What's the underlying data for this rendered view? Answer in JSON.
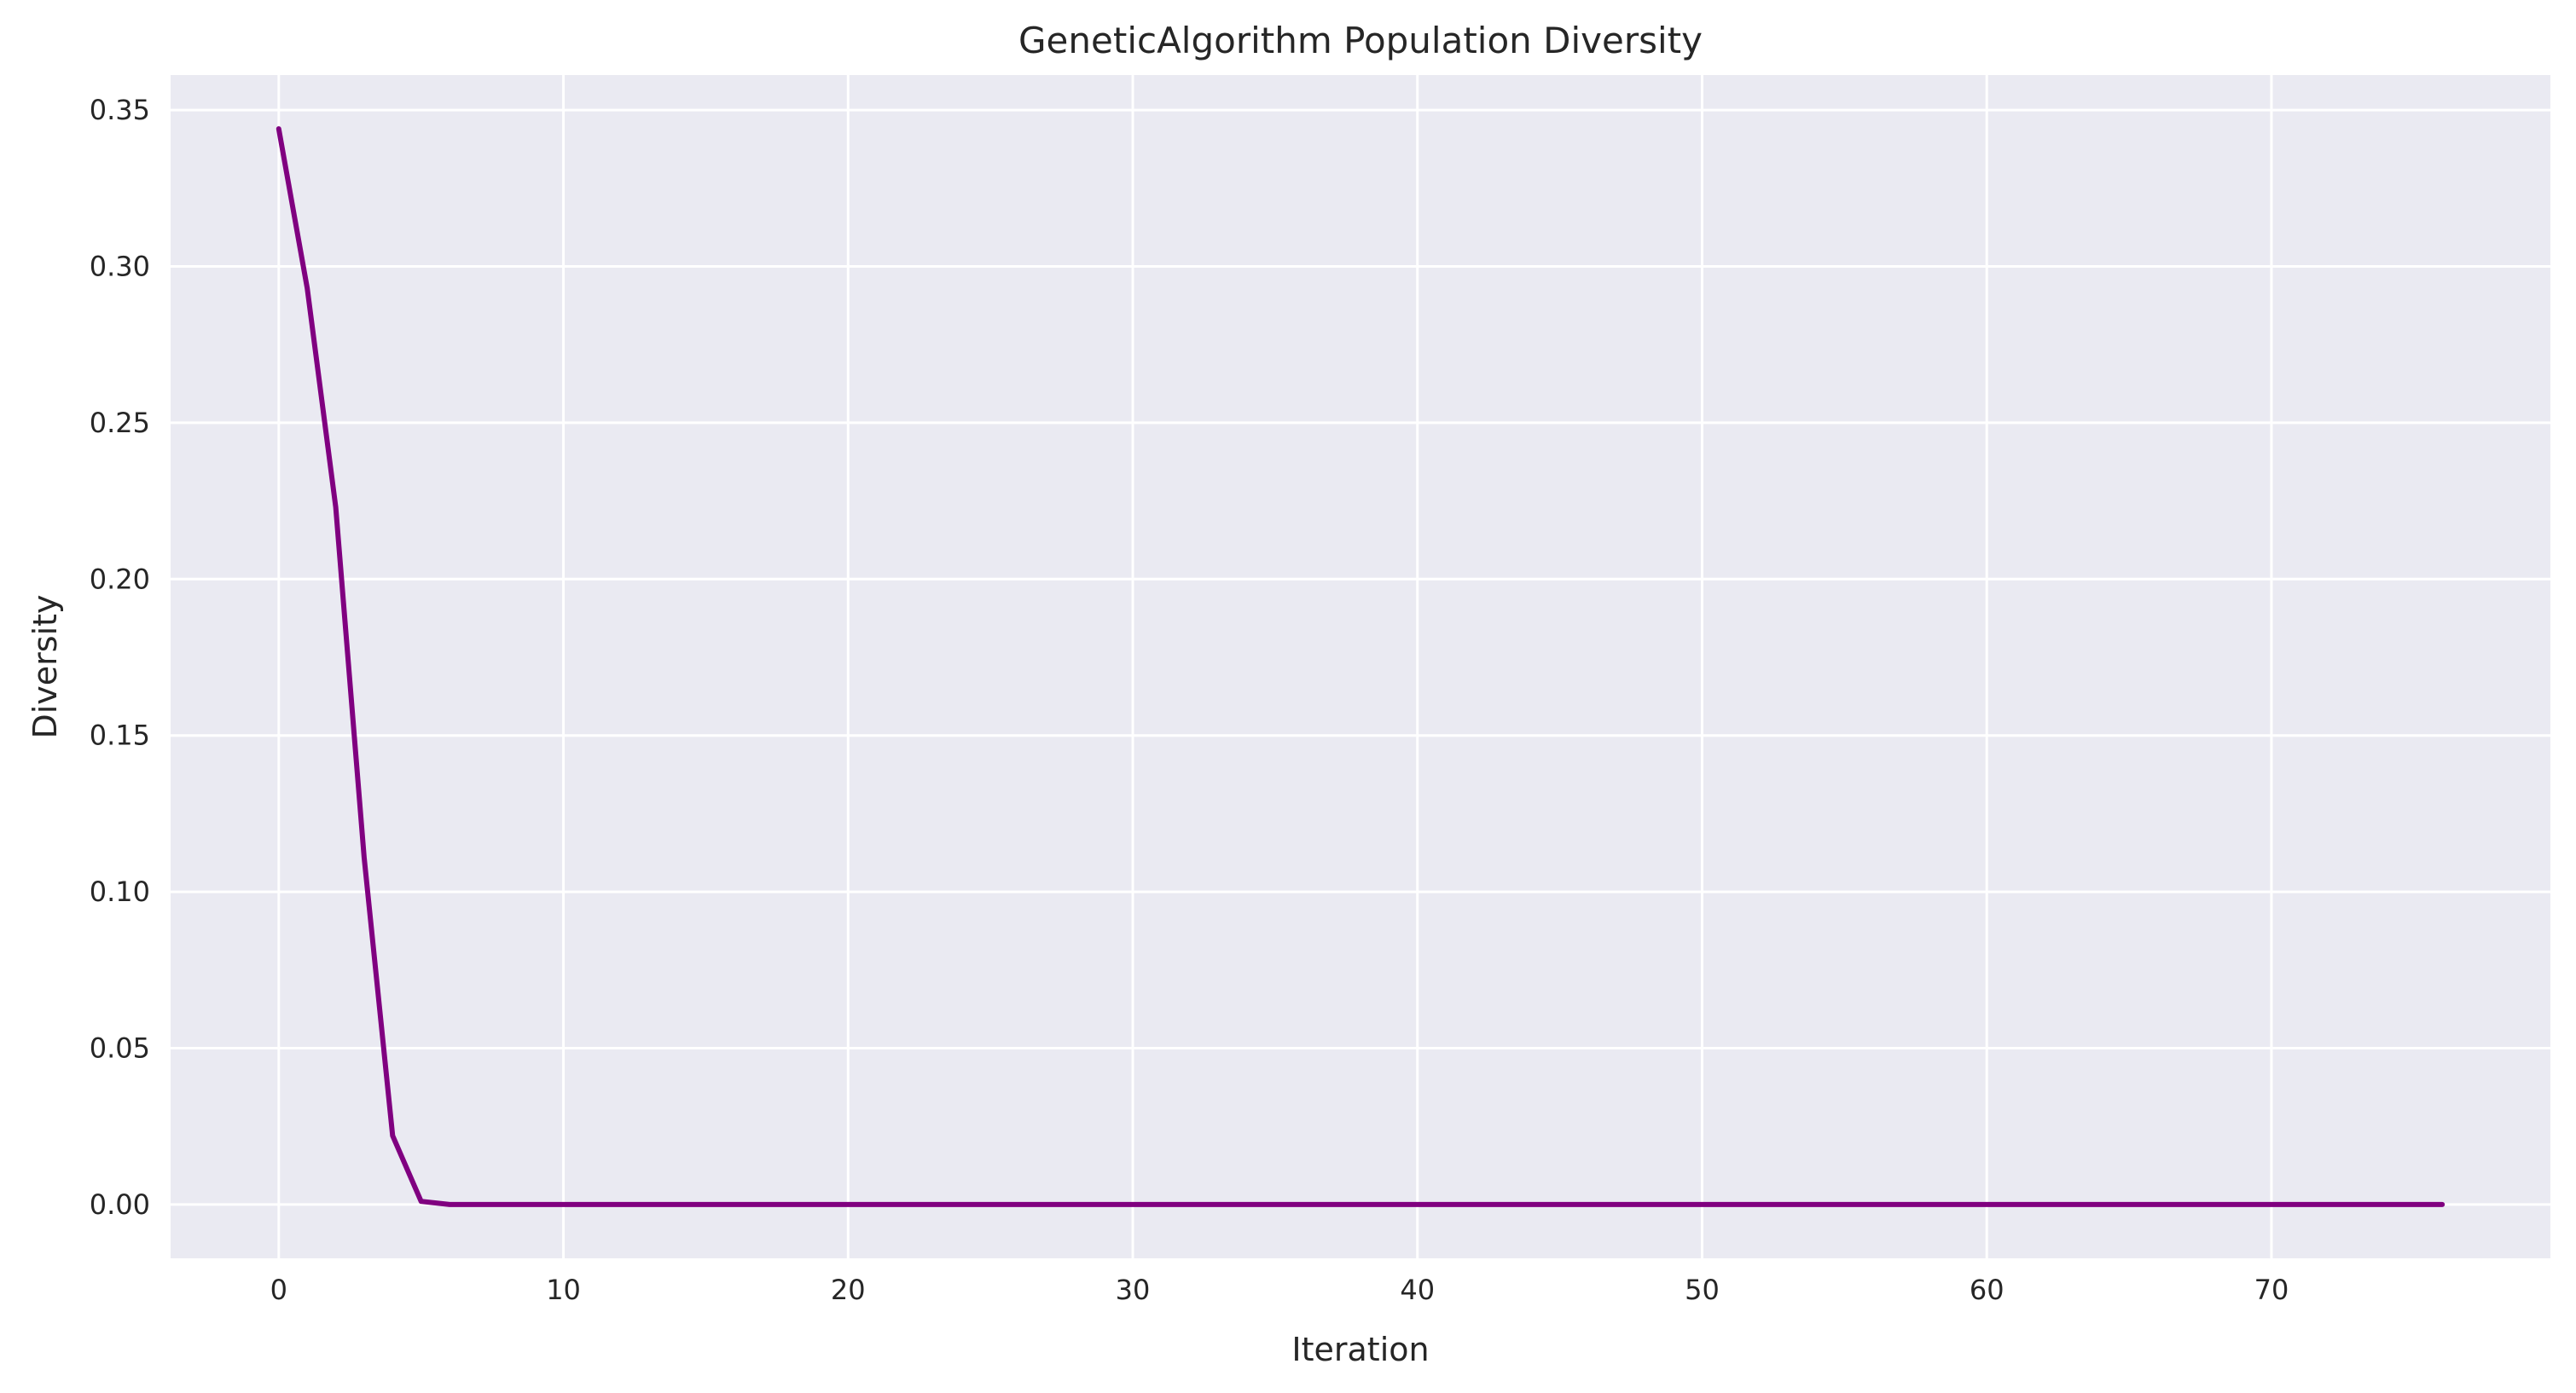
{
  "chart_data": {
    "type": "line",
    "title": "GeneticAlgorithm Population Diversity",
    "xlabel": "Iteration",
    "ylabel": "Diversity",
    "xlim": [
      -3.8,
      79.8
    ],
    "ylim": [
      -0.0172,
      0.3612
    ],
    "xticks": [
      "0",
      "10",
      "20",
      "30",
      "40",
      "50",
      "60",
      "70"
    ],
    "xtick_values": [
      0,
      10,
      20,
      30,
      40,
      50,
      60,
      70
    ],
    "yticks": [
      "0.00",
      "0.05",
      "0.10",
      "0.15",
      "0.20",
      "0.25",
      "0.30",
      "0.35"
    ],
    "ytick_values": [
      0,
      0.05,
      0.1,
      0.15,
      0.2,
      0.25,
      0.3,
      0.35
    ],
    "grid": true,
    "background_color": "#eaeaf2",
    "grid_color": "#ffffff",
    "series": [
      {
        "color": "#800080",
        "x": [
          0,
          1,
          2,
          3,
          4,
          5,
          6,
          7,
          8,
          9,
          10,
          11,
          12,
          13,
          14,
          15,
          16,
          17,
          18,
          19,
          20,
          21,
          22,
          23,
          24,
          25,
          26,
          27,
          28,
          29,
          30,
          31,
          32,
          33,
          34,
          35,
          36,
          37,
          38,
          39,
          40,
          41,
          42,
          43,
          44,
          45,
          46,
          47,
          48,
          49,
          50,
          51,
          52,
          53,
          54,
          55,
          56,
          57,
          58,
          59,
          60,
          61,
          62,
          63,
          64,
          65,
          66,
          67,
          68,
          69,
          70,
          71,
          72,
          73,
          74,
          75,
          76
        ],
        "y": [
          0.344,
          0.293,
          0.223,
          0.111,
          0.022,
          0.001,
          0,
          0,
          0,
          0,
          0,
          0,
          0,
          0,
          0,
          0,
          0,
          0,
          0,
          0,
          0,
          0,
          0,
          0,
          0,
          0,
          0,
          0,
          0,
          0,
          0,
          0,
          0,
          0,
          0,
          0,
          0,
          0,
          0,
          0,
          0,
          0,
          0,
          0,
          0,
          0,
          0,
          0,
          0,
          0,
          0,
          0,
          0,
          0,
          0,
          0,
          0,
          0,
          0,
          0,
          0,
          0,
          0,
          0,
          0,
          0,
          0,
          0,
          0,
          0,
          0,
          0,
          0,
          0,
          0,
          0,
          0
        ]
      }
    ]
  }
}
